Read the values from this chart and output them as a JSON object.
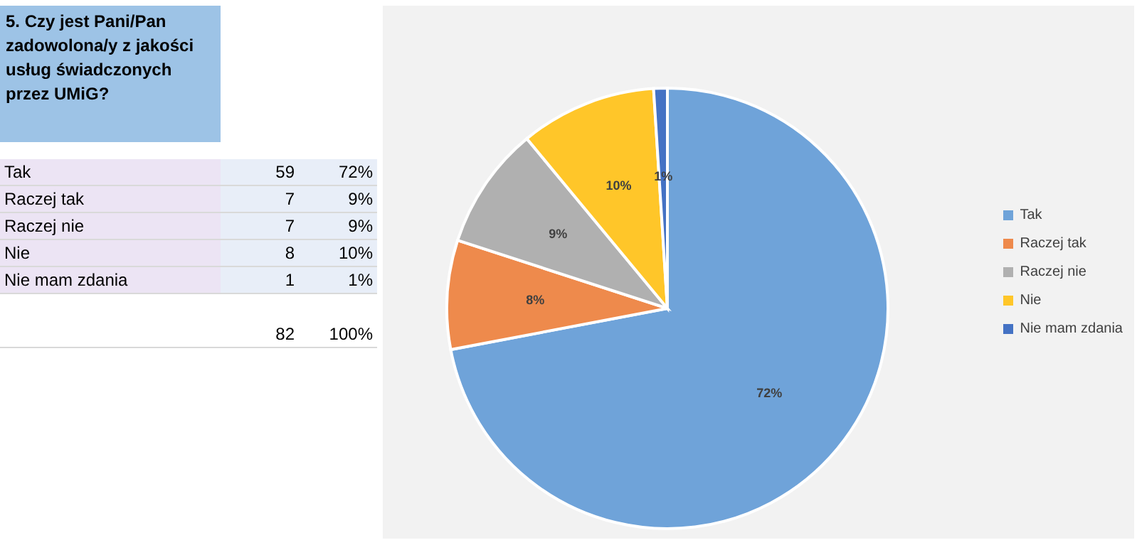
{
  "chart_data": {
    "type": "pie",
    "title": "5. Czy jest Pani/Pan zadowolona/y z jakości usług świadczonych przez UMiG?",
    "categories": [
      "Tak",
      "Raczej tak",
      "Raczej nie",
      "Nie",
      "Nie mam zdania"
    ],
    "values": [
      72,
      8,
      9,
      10,
      1
    ],
    "colors": [
      "#6fa3d9",
      "#ee8a4c",
      "#b0b0b0",
      "#ffc629",
      "#4472c4"
    ],
    "value_labels": [
      "72%",
      "8%",
      "9%",
      "10%",
      "1%"
    ],
    "annotations": [
      "59",
      "72%",
      "7",
      "9%",
      "7",
      "9%",
      "8",
      "10%",
      "1",
      "1%",
      "82",
      "100%"
    ],
    "legend": "right"
  }
}
